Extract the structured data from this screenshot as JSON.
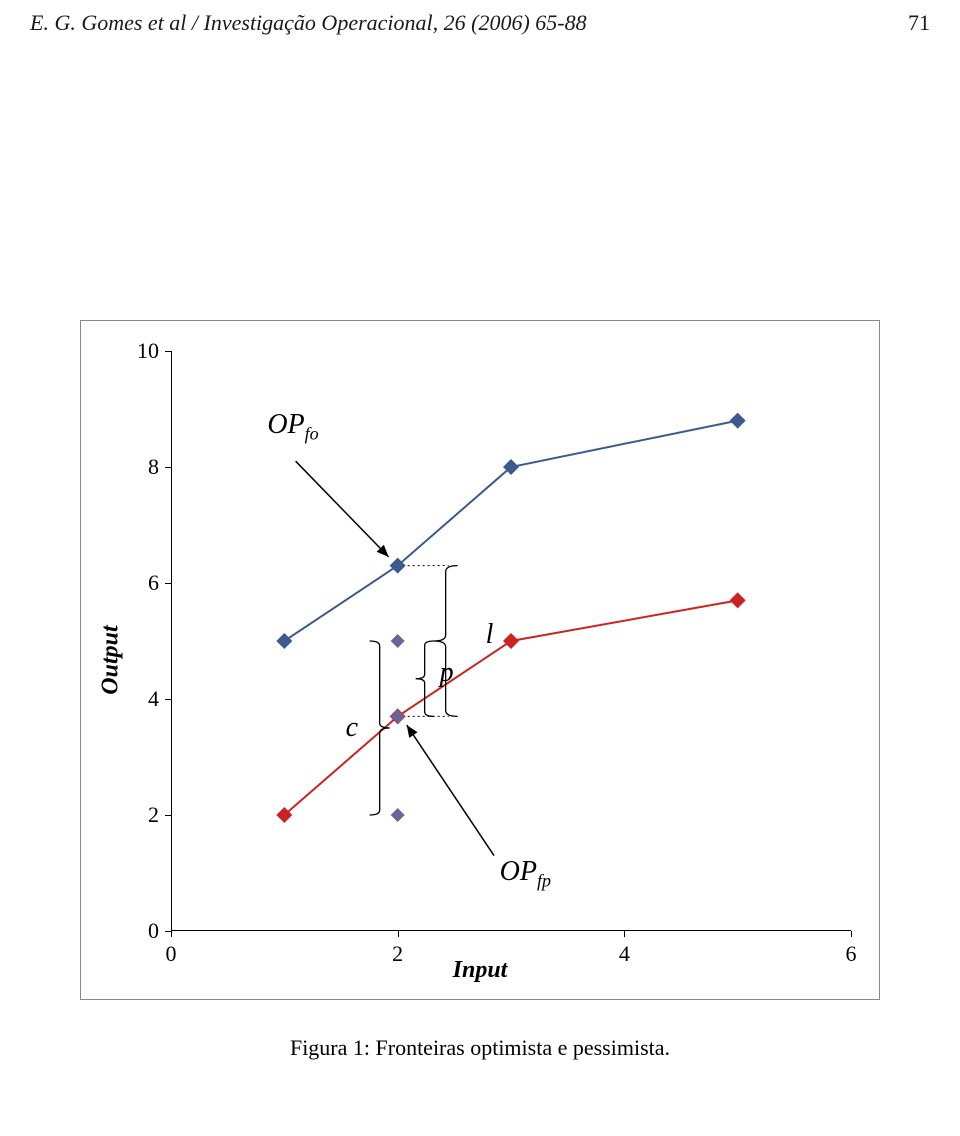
{
  "header": {
    "citation": "E. G. Gomes et al / Investigação Operacional, 26 (2006) 65-88",
    "page_num": "71"
  },
  "chart": {
    "type": "line-scatter",
    "xlim": [
      0,
      6
    ],
    "ylim": [
      0,
      10
    ],
    "xticks": [
      0,
      2,
      4,
      6
    ],
    "yticks": [
      0,
      2,
      4,
      6,
      8,
      10
    ],
    "xlabel": "Input",
    "ylabel": "Output",
    "background": "#ffffff",
    "axis_color": "#000000",
    "fontsize_ticks": 22,
    "fontsize_axis": 24,
    "series": {
      "optimist": {
        "color": "#3c5a8c",
        "marker_color": "#3c5a8c",
        "line_width": 2,
        "marker_size": 8,
        "points": [
          [
            1,
            5
          ],
          [
            2,
            6.3
          ],
          [
            3,
            8
          ],
          [
            5,
            8.8
          ]
        ]
      },
      "pessimist": {
        "color": "#cc2222",
        "marker_color": "#cc2222",
        "line_width": 2,
        "marker_size": 8,
        "points": [
          [
            1,
            2
          ],
          [
            2,
            3.7
          ],
          [
            3,
            5
          ],
          [
            5,
            5.7
          ]
        ]
      },
      "extra_points": {
        "color": "#666699",
        "marker_size": 7,
        "points": [
          [
            2,
            5
          ],
          [
            2,
            3.7
          ],
          [
            2,
            2
          ]
        ]
      }
    },
    "annotations": {
      "OP_fo": "OP",
      "OP_fo_sub": "fo",
      "OP_fp": "OP",
      "OP_fp_sub": "fp",
      "c": "c",
      "p": "p",
      "l": "l"
    },
    "brace_color": "#000000",
    "dotted_color": "#000000"
  },
  "caption": "Figura 1: Fronteiras optimista e pessimista."
}
